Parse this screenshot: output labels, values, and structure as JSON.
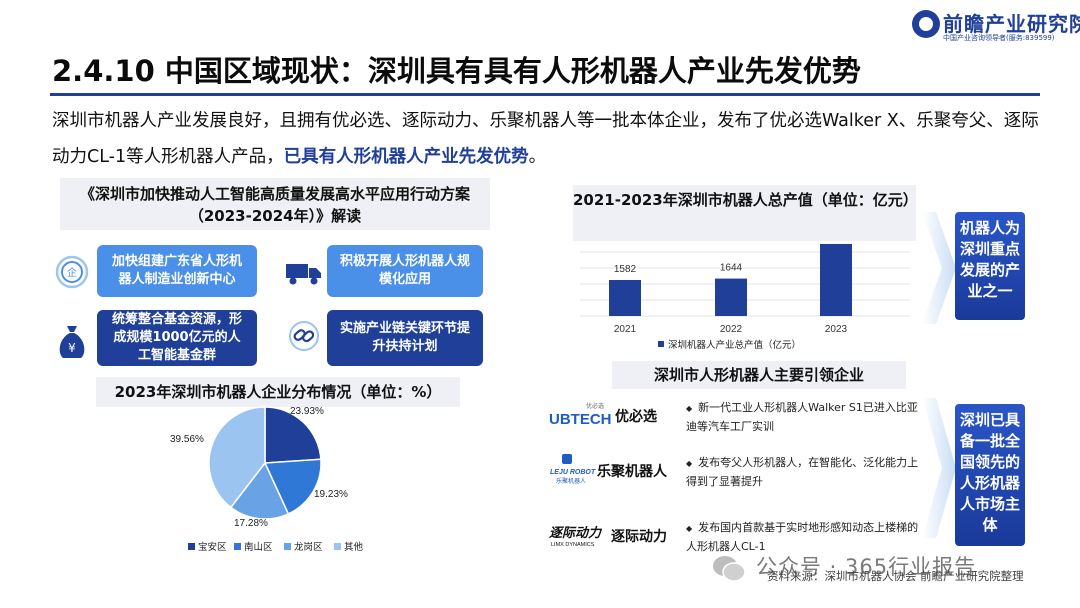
{
  "logo": {
    "name": "前瞻产业研究院",
    "sub": "中国产业咨询领导者(服务:839599)"
  },
  "page_title": "2.4.10 中国区域现状：深圳具有具有人形机器人产业先发优势",
  "intro": {
    "text_a": "深圳市机器人产业发展良好，且拥有优必选、逐际动力、乐聚机器人等一批本体企业，发布了优必选Walker X、乐聚夸父、逐际动力CL-1等人形机器人产品，",
    "text_hl": "已具有人形机器人产业先发优势",
    "text_end": "。"
  },
  "policy": {
    "heading": "《深圳市加快推动人工智能高质量发展高水平应用行动方案（2023-2024年）》解读",
    "cards": [
      {
        "text": "加快组建广东省人形机器人制造业创新中心",
        "icon": "enterprise-icon"
      },
      {
        "text": "积极开展人形机器人规模化应用",
        "icon": "truck-icon"
      },
      {
        "text": "统筹整合基金资源，形成规模1000亿元的人工智能基金群",
        "icon": "money-bag-icon"
      },
      {
        "text": "实施产业链关键环节提升扶持计划",
        "icon": "chain-icon"
      }
    ]
  },
  "pie_heading": "2023年深圳市机器人企业分布情况（单位：%）",
  "value_heading": "2021-2023年深圳市机器人总产值（单位：亿元）",
  "side_boxes": [
    "机器人为深圳重点发展的产业之一",
    "深圳已具备一批全国领先的人形机器人市场主体"
  ],
  "enterprise": {
    "heading": "深圳市人形机器人主要引领企业",
    "rows": [
      {
        "logo": "UBTECH",
        "logo_cn": "优必选",
        "name": "优必选",
        "desc": "新一代工业人形机器人Walker S1已进入比亚迪等汽车工厂实训"
      },
      {
        "logo": "LEJU ROBOT",
        "logo_cn": "乐聚机器人",
        "name": "乐聚机器人",
        "desc": "发布夸父人形机器人，在智能化、泛化能力上得到了显著提升"
      },
      {
        "logo": "逐际动力",
        "logo_sub": "LIMX DYNAMICS",
        "name": "逐际动力",
        "desc": "发布国内首款基于实时地形感知动态上楼梯的人形机器人CL-1"
      }
    ]
  },
  "source": "资料来源：深圳市机器人协会 前瞻产业研究院整理",
  "watermark": "公众号 · 365行业报告",
  "colors": {
    "primary": "#1f3f98",
    "accent": "#4a8fe8",
    "heading_bg": "#eef0f5"
  },
  "chart_data": [
    {
      "type": "pie",
      "title": "2023年深圳市机器人企业分布情况（单位：%）",
      "categories": [
        "宝安区",
        "南山区",
        "龙岗区",
        "其他"
      ],
      "values": [
        23.93,
        19.23,
        17.28,
        39.56
      ],
      "value_labels": [
        "23.93%",
        "19.23%",
        "17.28%",
        "39.56%"
      ],
      "colors": [
        "#1f3f98",
        "#2f78d6",
        "#6aa2e6",
        "#9cc4f0"
      ],
      "legend": "bottom"
    },
    {
      "type": "bar",
      "title": "2021-2023年深圳市机器人总产值（单位：亿元）",
      "categories": [
        "2021",
        "2022",
        "2023"
      ],
      "series": [
        {
          "name": "深圳机器人产业总产值（亿元）",
          "values": [
            1582,
            1644,
            null
          ]
        }
      ],
      "data_labels": [
        "1582",
        "1644",
        ""
      ],
      "color": "#1f3f98",
      "grid": true,
      "legend": "bottom"
    }
  ]
}
